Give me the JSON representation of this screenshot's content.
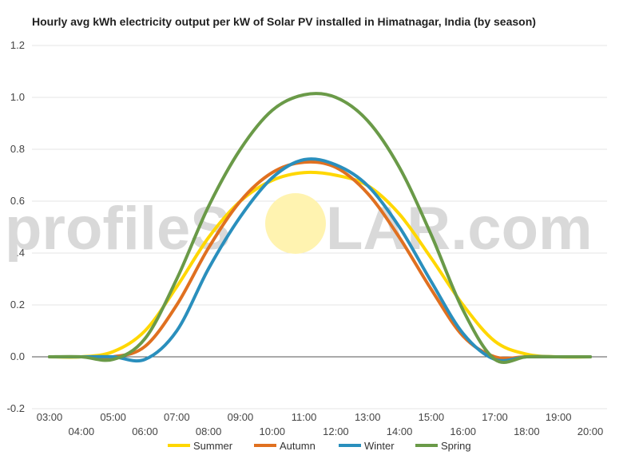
{
  "chart_data": {
    "type": "line",
    "title": "Hourly avg kWh electricity output per kW of Solar PV installed in Himatnagar, India (by season)",
    "xlabel": "",
    "ylabel": "",
    "ylim": [
      -0.2,
      1.2
    ],
    "yticks": [
      "-0.2",
      "0.0",
      "0.2",
      "0.4",
      "0.6",
      "0.8",
      "1.0",
      "1.2"
    ],
    "grid": true,
    "legend_position": "bottom",
    "categories": [
      "03:00",
      "04:00",
      "05:00",
      "06:00",
      "07:00",
      "08:00",
      "09:00",
      "10:00",
      "11:00",
      "12:00",
      "13:00",
      "14:00",
      "15:00",
      "16:00",
      "17:00",
      "18:00",
      "19:00",
      "20:00"
    ],
    "series": [
      {
        "name": "Summer",
        "color": "#FFD700",
        "values": [
          0,
          0,
          0.02,
          0.1,
          0.27,
          0.46,
          0.6,
          0.68,
          0.71,
          0.7,
          0.66,
          0.55,
          0.38,
          0.2,
          0.06,
          0.01,
          0,
          0
        ]
      },
      {
        "name": "Autumn",
        "color": "#E07020",
        "values": [
          0,
          0,
          0,
          0.04,
          0.2,
          0.42,
          0.6,
          0.71,
          0.75,
          0.73,
          0.63,
          0.46,
          0.26,
          0.08,
          0,
          0,
          0,
          0
        ]
      },
      {
        "name": "Winter",
        "color": "#2A8FBD",
        "values": [
          0,
          0,
          0,
          -0.01,
          0.1,
          0.34,
          0.54,
          0.69,
          0.76,
          0.74,
          0.66,
          0.5,
          0.29,
          0.09,
          -0.01,
          0,
          0,
          0
        ]
      },
      {
        "name": "Spring",
        "color": "#6A9A48",
        "values": [
          0,
          0,
          -0.01,
          0.07,
          0.3,
          0.58,
          0.8,
          0.95,
          1.01,
          1.0,
          0.91,
          0.73,
          0.47,
          0.18,
          -0.01,
          0,
          0,
          0
        ]
      }
    ]
  },
  "watermark": {
    "text_left": "profileS",
    "text_right": "LAR.com",
    "sun_color": "#FFF3B0"
  }
}
